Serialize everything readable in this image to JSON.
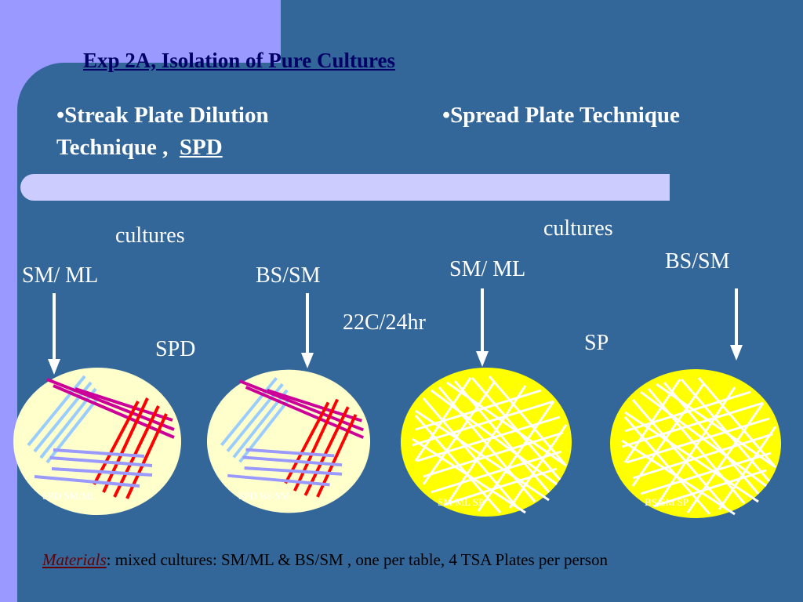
{
  "title": "Exp 2A, Isolation of Pure Cultures",
  "headings": {
    "left_bullet": "•",
    "left_line1": "Streak Plate Dilution",
    "left_line2": "Technique ,",
    "left_abbr": "SPD",
    "right_bullet": "•",
    "right_text": "Spread Plate Technique"
  },
  "labels": {
    "cultures_left": "cultures",
    "cultures_right": "cultures",
    "smml_1": "SM/ ML",
    "bssm_1": "BS/SM",
    "smml_2": "SM/ ML",
    "bssm_2": "BS/SM",
    "incubation": "22C/24hr",
    "spd": "SPD",
    "sp": "SP"
  },
  "plates": [
    {
      "caption": "SPD SM/ML",
      "type": "streak"
    },
    {
      "caption": "SPD BS/SM",
      "type": "streak"
    },
    {
      "caption": "SM/ML  SP",
      "type": "spread"
    },
    {
      "caption": "BS/SM  SP",
      "type": "spread"
    }
  ],
  "materials": {
    "label": "Materials",
    "text": ": mixed cultures: SM/ML & BS/SM , one per table, 4 TSA Plates per person"
  },
  "colors": {
    "background": "#336699",
    "left_band": "#9999ff",
    "divider": "#ccccff",
    "title": "#000066",
    "streak_plate": "#ffffcc",
    "spread_plate": "#ffff00",
    "streak_blue": "#99ccff",
    "streak_magenta": "#cc0099",
    "streak_red": "#ff0000",
    "streak_lavender": "#9999ff"
  }
}
